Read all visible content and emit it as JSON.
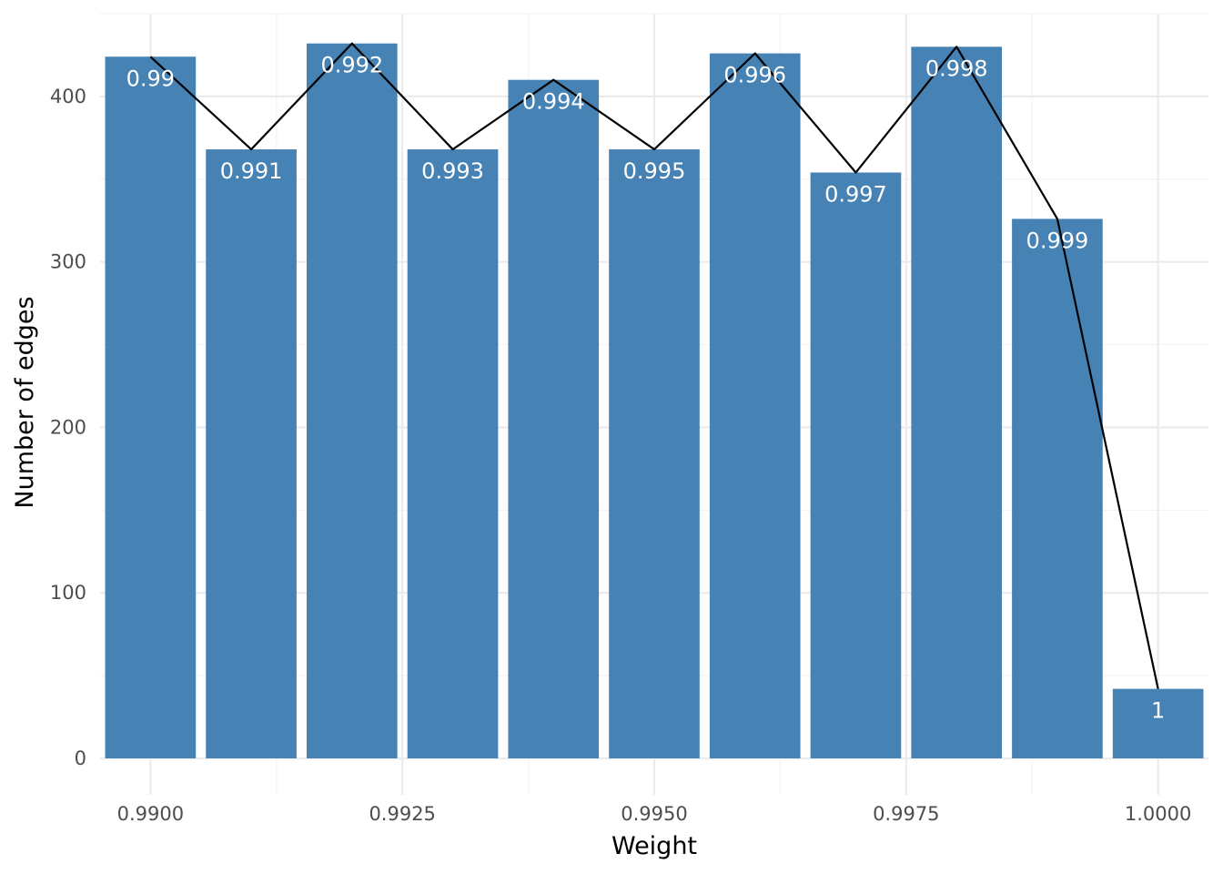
{
  "chart_data": {
    "type": "bar",
    "xlabel": "Weight",
    "ylabel": "Number of edges",
    "x": [
      0.99,
      0.991,
      0.992,
      0.993,
      0.994,
      0.995,
      0.996,
      0.997,
      0.998,
      0.999,
      1.0
    ],
    "values": [
      424,
      368,
      432,
      368,
      410,
      368,
      426,
      354,
      430,
      326,
      42
    ],
    "bar_labels": [
      "0.99",
      "0.991",
      "0.992",
      "0.993",
      "0.994",
      "0.995",
      "0.996",
      "0.997",
      "0.998",
      "0.999",
      "1"
    ],
    "x_ticks": [
      0.99,
      0.9925,
      0.995,
      0.9975,
      1.0
    ],
    "x_tick_labels": [
      "0.9900",
      "0.9925",
      "0.9950",
      "0.9975",
      "1.0000"
    ],
    "y_ticks": [
      0,
      100,
      200,
      300,
      400
    ],
    "y_tick_labels": [
      "0",
      "100",
      "200",
      "300",
      "400"
    ],
    "xlim": [
      0.9895,
      1.0005
    ],
    "ylim": [
      0,
      450
    ],
    "bar_width": 0.0009,
    "overlay_line": true,
    "grid": true,
    "colors": {
      "bar": "#4682b4",
      "line": "#000000",
      "grid_major": "#ebebeb",
      "grid_minor": "#f3f3f3",
      "bar_label": "#ffffff"
    }
  }
}
